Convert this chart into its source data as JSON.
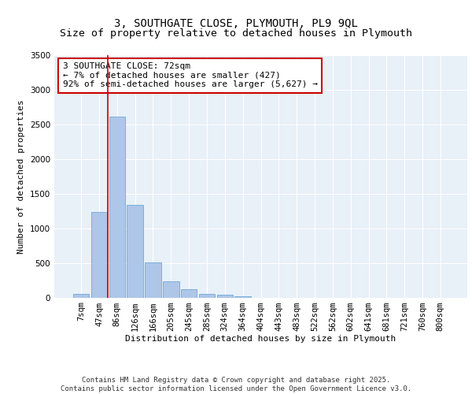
{
  "title_line1": "3, SOUTHGATE CLOSE, PLYMOUTH, PL9 9QL",
  "title_line2": "Size of property relative to detached houses in Plymouth",
  "xlabel": "Distribution of detached houses by size in Plymouth",
  "ylabel": "Number of detached properties",
  "categories": [
    "7sqm",
    "47sqm",
    "86sqm",
    "126sqm",
    "166sqm",
    "205sqm",
    "245sqm",
    "285sqm",
    "324sqm",
    "364sqm",
    "404sqm",
    "443sqm",
    "483sqm",
    "522sqm",
    "562sqm",
    "602sqm",
    "641sqm",
    "681sqm",
    "721sqm",
    "760sqm",
    "800sqm"
  ],
  "values": [
    55,
    1240,
    2610,
    1340,
    510,
    230,
    115,
    50,
    40,
    15,
    0,
    0,
    0,
    0,
    0,
    0,
    0,
    0,
    0,
    0,
    0
  ],
  "bar_color": "#aec6e8",
  "bar_edge_color": "#5a9fd4",
  "vline_color": "#cc0000",
  "vline_x": 1.5,
  "annotation_text": "3 SOUTHGATE CLOSE: 72sqm\n← 7% of detached houses are smaller (427)\n92% of semi-detached houses are larger (5,627) →",
  "annotation_box_color": "#ffffff",
  "annotation_box_edge_color": "#cc0000",
  "ylim": [
    0,
    3500
  ],
  "yticks": [
    0,
    500,
    1000,
    1500,
    2000,
    2500,
    3000,
    3500
  ],
  "background_color": "#e8f0f8",
  "grid_color": "#ffffff",
  "footer_text": "Contains HM Land Registry data © Crown copyright and database right 2025.\nContains public sector information licensed under the Open Government Licence v3.0.",
  "title_fontsize": 10,
  "subtitle_fontsize": 9.5,
  "axis_label_fontsize": 8,
  "tick_fontsize": 7.5,
  "annotation_fontsize": 8,
  "footer_fontsize": 6.5,
  "ylabel_fontsize": 8
}
